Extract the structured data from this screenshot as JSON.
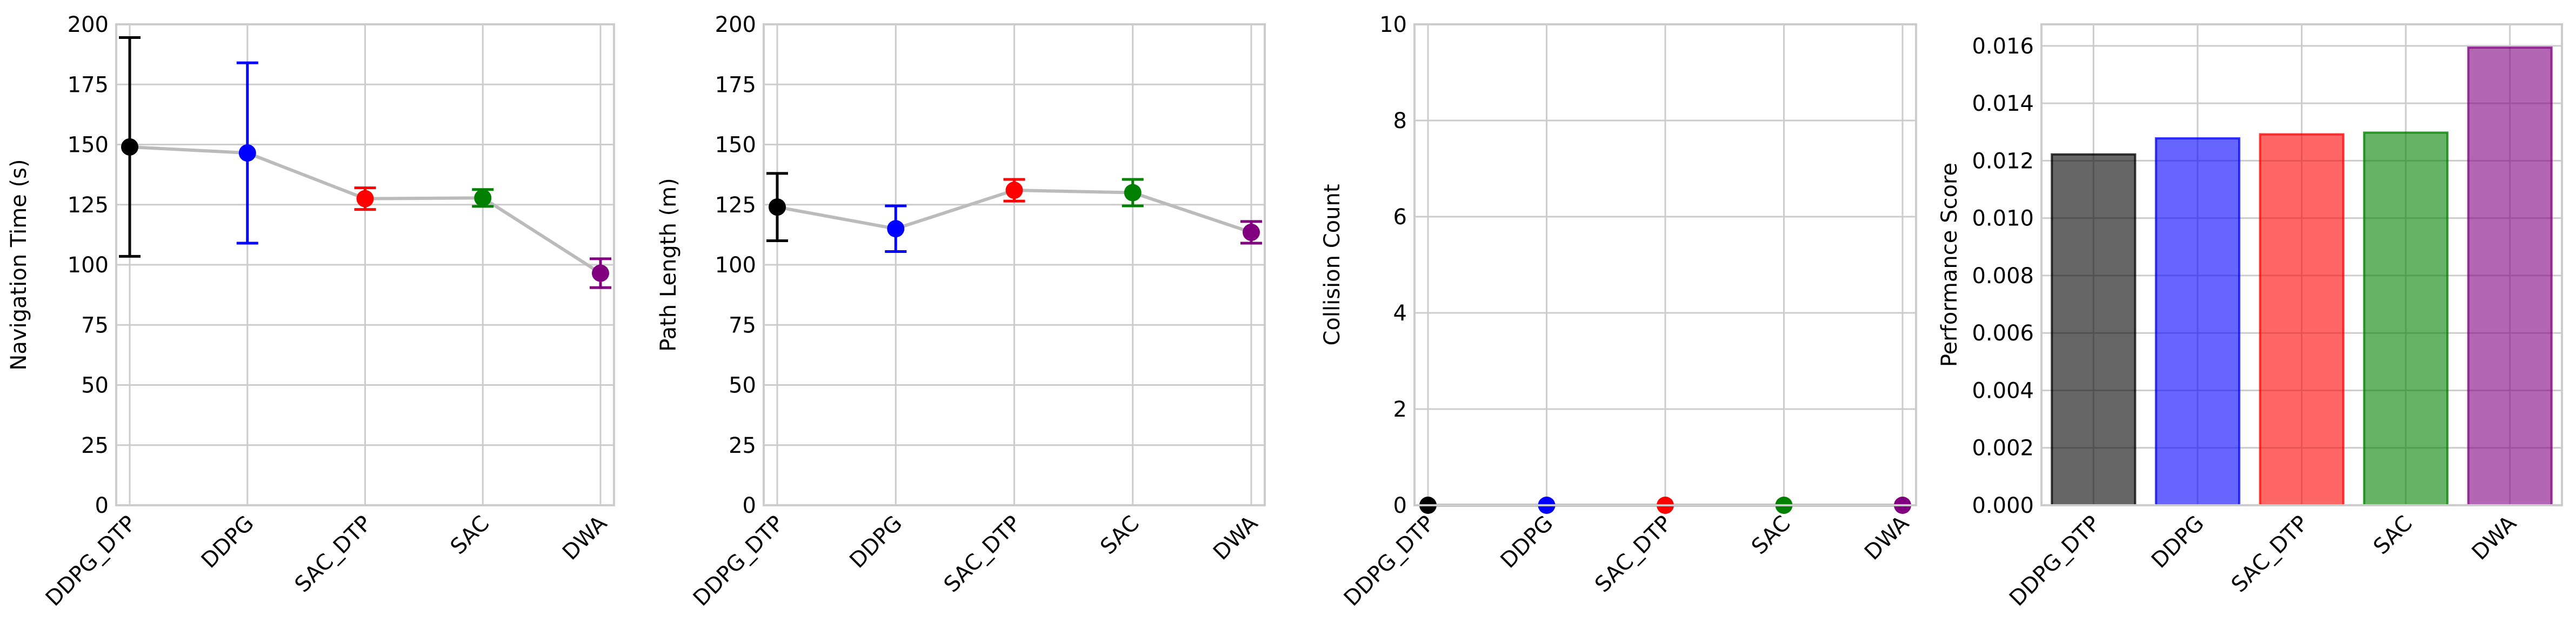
{
  "chart_data": [
    {
      "type": "line",
      "title": "",
      "xlabel": "",
      "ylabel": "Navigation Time (s)",
      "categories": [
        "DDPG_DTP",
        "DDPG",
        "SAC_DTP",
        "SAC",
        "DWA"
      ],
      "values": [
        149,
        146.5,
        127.5,
        127.8,
        96.5
      ],
      "errors": [
        45.5,
        37.5,
        4.5,
        3.5,
        6
      ],
      "colors": [
        "#000000",
        "#0000ff",
        "#ff0000",
        "#008000",
        "#800080"
      ],
      "line_color": "#bbbbbb",
      "ylim": [
        0,
        200
      ],
      "yticks": [
        0,
        25,
        50,
        75,
        100,
        125,
        150,
        175,
        200
      ],
      "ytick_labels": [
        "0",
        "25",
        "50",
        "75",
        "100",
        "125",
        "150",
        "175",
        "200"
      ],
      "grid": true
    },
    {
      "type": "line",
      "title": "",
      "xlabel": "",
      "ylabel": "Path Length (m)",
      "categories": [
        "DDPG_DTP",
        "DDPG",
        "SAC_DTP",
        "SAC",
        "DWA"
      ],
      "values": [
        124,
        115,
        131,
        130,
        113.5
      ],
      "errors": [
        14,
        9.5,
        4.5,
        5.5,
        4.5
      ],
      "colors": [
        "#000000",
        "#0000ff",
        "#ff0000",
        "#008000",
        "#800080"
      ],
      "line_color": "#bbbbbb",
      "ylim": [
        0,
        200
      ],
      "yticks": [
        0,
        25,
        50,
        75,
        100,
        125,
        150,
        175,
        200
      ],
      "ytick_labels": [
        "0",
        "25",
        "50",
        "75",
        "100",
        "125",
        "150",
        "175",
        "200"
      ],
      "grid": true
    },
    {
      "type": "scatter",
      "title": "",
      "xlabel": "",
      "ylabel": "Collision Count",
      "categories": [
        "DDPG_DTP",
        "DDPG",
        "SAC_DTP",
        "SAC",
        "DWA"
      ],
      "values": [
        0,
        0,
        0,
        0,
        0
      ],
      "errors": [
        0,
        0,
        0,
        0,
        0
      ],
      "colors": [
        "#000000",
        "#0000ff",
        "#ff0000",
        "#008000",
        "#800080"
      ],
      "line_color": "#bbbbbb",
      "ylim": [
        0,
        10
      ],
      "yticks": [
        0,
        2,
        4,
        6,
        8,
        10
      ],
      "ytick_labels": [
        "0",
        "2",
        "4",
        "6",
        "8",
        "10"
      ],
      "grid": true
    },
    {
      "type": "bar",
      "title": "",
      "xlabel": "",
      "ylabel": "Performance Score",
      "categories": [
        "DDPG_DTP",
        "DDPG",
        "SAC_DTP",
        "SAC",
        "DWA"
      ],
      "values": [
        0.01222,
        0.01278,
        0.01292,
        0.01298,
        0.01594
      ],
      "colors": [
        "#000000",
        "#0000ff",
        "#ff0000",
        "#008000",
        "#800080"
      ],
      "bar_alpha": 0.6,
      "ylim": [
        0,
        0.01675
      ],
      "yticks": [
        0,
        0.002,
        0.004,
        0.006,
        0.008,
        0.01,
        0.012,
        0.014,
        0.016
      ],
      "ytick_labels": [
        "0.000",
        "0.002",
        "0.004",
        "0.006",
        "0.008",
        "0.010",
        "0.012",
        "0.014",
        "0.016"
      ],
      "grid": true
    }
  ]
}
